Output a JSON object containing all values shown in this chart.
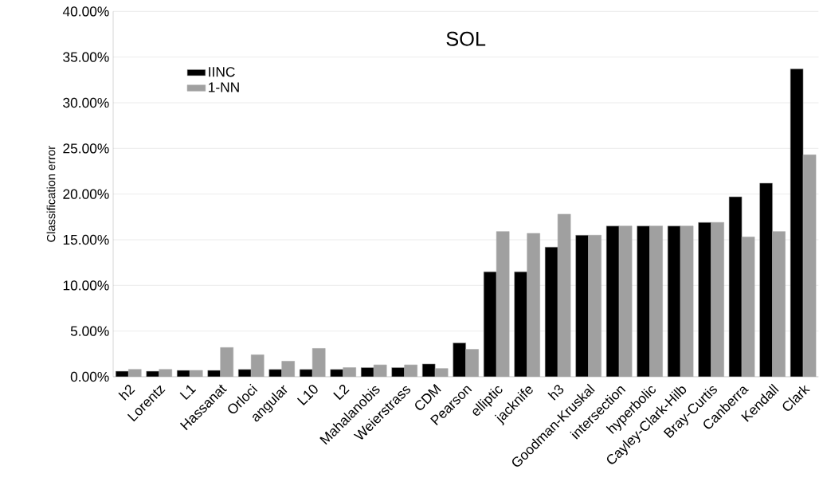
{
  "chart_data": {
    "type": "bar",
    "title": "SOL",
    "ylabel": "Classification error",
    "categories": [
      "h2",
      "Lorentz",
      "L1",
      "Hassanat",
      "Orloci",
      "angular",
      "L10",
      "L2",
      "Mahalanobis",
      "Weierstrass",
      "CDM",
      "Pearson",
      "elliptic",
      "jacknife",
      "h3",
      "Goodman-Kruskal",
      "intersection",
      "hyperbolic",
      "Cayley-Clark-Hilb",
      "Bray-Curtis",
      "Canberra",
      "Kendall",
      "Clark"
    ],
    "series": [
      {
        "name": "IINC",
        "color": "#000000",
        "values": [
          0.6,
          0.6,
          0.7,
          0.7,
          0.8,
          0.8,
          0.8,
          0.8,
          1.0,
          1.0,
          1.4,
          3.7,
          11.5,
          11.5,
          14.2,
          15.5,
          16.5,
          16.5,
          16.5,
          16.9,
          19.7,
          21.2,
          33.7
        ]
      },
      {
        "name": "1-NN",
        "color": "#a0a0a0",
        "values": [
          0.8,
          0.8,
          0.7,
          3.2,
          2.4,
          1.7,
          3.1,
          1.0,
          1.3,
          1.3,
          0.9,
          3.0,
          15.9,
          15.7,
          17.8,
          15.5,
          16.5,
          16.5,
          16.5,
          16.9,
          15.3,
          15.9,
          24.3
        ]
      }
    ],
    "ylim": [
      0,
      40
    ],
    "yticks": [
      {
        "value": 0,
        "label": "0.00%"
      },
      {
        "value": 5,
        "label": "5.00%"
      },
      {
        "value": 10,
        "label": "10.00%"
      },
      {
        "value": 15,
        "label": "15.00%"
      },
      {
        "value": 20,
        "label": "20.00%"
      },
      {
        "value": 25,
        "label": "25.00%"
      },
      {
        "value": 30,
        "label": "30.00%"
      },
      {
        "value": 35,
        "label": "35.00%"
      },
      {
        "value": 40,
        "label": "40.00%"
      }
    ],
    "grid": "y",
    "legend": "top left"
  }
}
